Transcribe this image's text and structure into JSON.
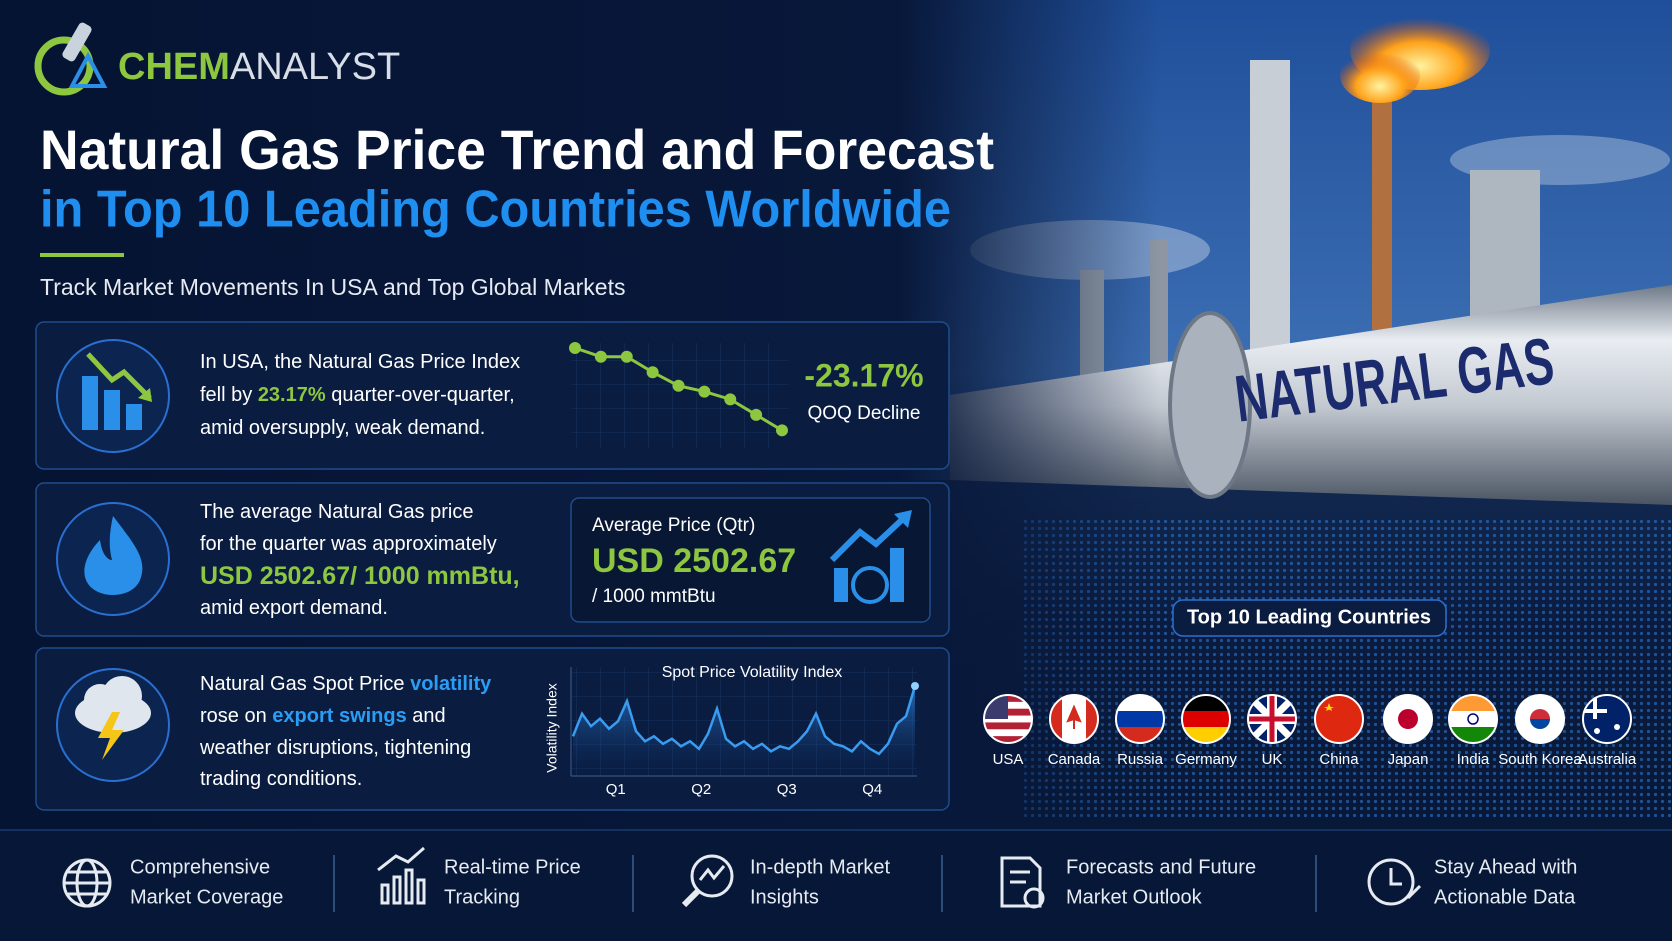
{
  "brand": {
    "part1": "CHEM",
    "part2": "ANALYST"
  },
  "header": {
    "title": "Natural Gas Price Trend and Forecast",
    "title_line2": "in Top 10 Leading Countries Worldwide",
    "subtitle": "Track Market Movements In USA and Top Global Markets"
  },
  "cards": [
    {
      "lines": [
        [
          {
            "text": "In USA, the Natural Gas Price Index",
            "style": "plain"
          }
        ],
        [
          {
            "text": "fell by ",
            "style": "plain"
          },
          {
            "text": "23.17%",
            "style": "green"
          },
          {
            "text": " quarter-over-quarter,",
            "style": "plain"
          }
        ],
        [
          {
            "text": "amid oversupply, weak demand.",
            "style": "plain"
          }
        ]
      ],
      "stat": "-23.17%",
      "stat_label": "QOQ Decline",
      "chart": {
        "type": "line",
        "values": [
          95,
          86,
          86,
          70,
          56,
          50,
          42,
          26,
          10
        ],
        "color": "#8dc63f"
      }
    },
    {
      "lines": [
        [
          {
            "text": "The average Natural Gas price",
            "style": "plain"
          }
        ],
        [
          {
            "text": "for the quarter was approximately",
            "style": "plain"
          }
        ],
        [
          {
            "text": "USD 2502.67/ 1000 mmBtu,",
            "style": "green-bold"
          }
        ],
        [
          {
            "text": "amid export demand.",
            "style": "plain"
          }
        ]
      ],
      "box_title": "Average Price (Qtr)",
      "box_value": "USD 2502.67",
      "box_unit": "/ 1000 mmtBtu"
    },
    {
      "lines": [
        [
          {
            "text": "Natural Gas Spot Price ",
            "style": "plain"
          },
          {
            "text": "volatility",
            "style": "blue"
          }
        ],
        [
          {
            "text": "rose on ",
            "style": "plain"
          },
          {
            "text": "export swings",
            "style": "blue"
          },
          {
            "text": " and",
            "style": "plain"
          }
        ],
        [
          {
            "text": "weather disruptions, tightening",
            "style": "plain"
          }
        ],
        [
          {
            "text": "trading conditions.",
            "style": "plain"
          }
        ]
      ],
      "chart": {
        "type": "area",
        "title": "Spot Price Volatility Index",
        "y_label": "Volatility Index",
        "categories": [
          "Q1",
          "Q2",
          "Q3",
          "Q4"
        ],
        "values": [
          30,
          48,
          38,
          44,
          36,
          42,
          58,
          34,
          26,
          30,
          24,
          28,
          22,
          26,
          20,
          32,
          52,
          28,
          22,
          26,
          20,
          24,
          18,
          22,
          20,
          26,
          34,
          48,
          30,
          24,
          22,
          18,
          26,
          20,
          16,
          24,
          40,
          46,
          70
        ],
        "color": "#3a9cf0"
      }
    }
  ],
  "image_text": "NATURAL GAS",
  "countries": {
    "title": "Top 10 Leading Countries",
    "names": [
      "USA",
      "Canada",
      "Russia",
      "Germany",
      "UK",
      "China",
      "Japan",
      "India",
      "South Korea",
      "Australia"
    ]
  },
  "features": [
    [
      "Comprehensive",
      "Market Coverage"
    ],
    [
      "Real-time Price",
      "Tracking"
    ],
    [
      "In-depth Market",
      "Insights"
    ],
    [
      "Forecasts and Future",
      "Market Outlook"
    ],
    [
      "Stay Ahead with",
      "Actionable Data"
    ]
  ]
}
